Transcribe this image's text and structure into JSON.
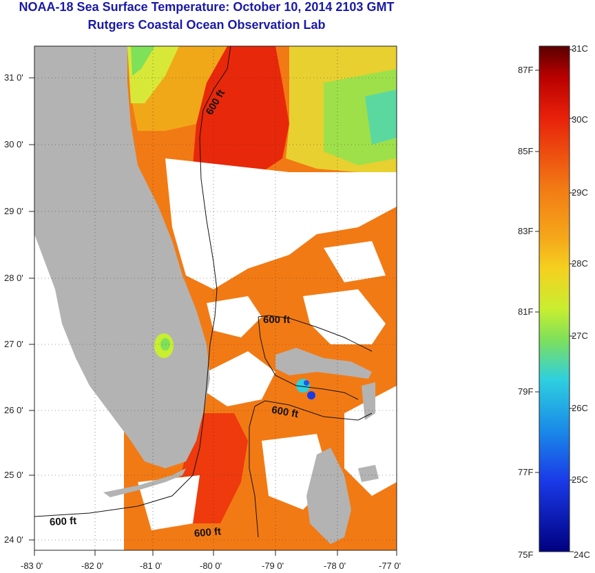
{
  "header": {
    "title": "NOAA-18 Sea Surface Temperature:  October 10, 2014 2103 GMT",
    "subtitle": "Rutgers Coastal Ocean Observation Lab"
  },
  "map": {
    "lon_ticks": [
      "-83 0'",
      "-82 0'",
      "-81 0'",
      "-80 0'",
      "-79 0'",
      "-78 0'",
      "-77 0'"
    ],
    "lat_ticks": [
      "31 0'",
      "30 0'",
      "29 0'",
      "28 0'",
      "27 0'",
      "26 0'",
      "25 0'",
      "24 0'"
    ],
    "contour_labels": [
      "600 ft",
      "600 ft",
      "600 ft",
      "600 ft",
      "600 ft"
    ]
  },
  "colorbar": {
    "celsius_labels": [
      "31C",
      "30C",
      "29C",
      "28C",
      "27C",
      "26C",
      "25C",
      "24C"
    ],
    "fahrenheit_labels": [
      "87F",
      "85F",
      "83F",
      "81F",
      "79F",
      "77F",
      "75F"
    ],
    "colors": {
      "max": "#5a0000",
      "hot": "#e8200a",
      "warm": "#f27a14",
      "mid": "#f5d020",
      "mild": "#7fe05a",
      "cool": "#2ecfe0",
      "cold": "#1a5ae8",
      "min": "#000080"
    }
  },
  "colors": {
    "land": "#b3b3b3",
    "cloud": "#ffffff",
    "title": "#1a1aa8"
  }
}
